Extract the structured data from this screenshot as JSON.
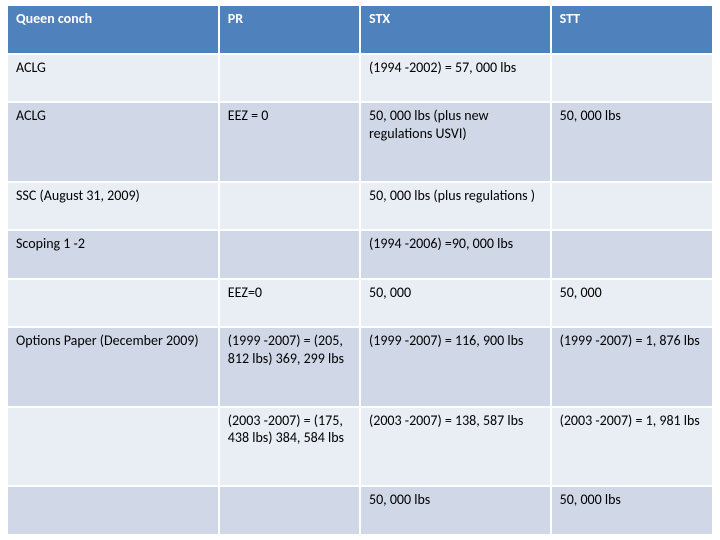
{
  "table": {
    "colors": {
      "header_bg": "#4f81bd",
      "header_fg": "#ffffff",
      "row_odd_bg": "#d0d8e8",
      "row_even_bg": "#e9edf4",
      "border": "#ffffff",
      "text": "#000000"
    },
    "font": {
      "family": "Calibri",
      "header_size_pt": 11,
      "cell_size_pt": 11,
      "header_weight": "bold"
    },
    "col_widths_pct": [
      30,
      20,
      27,
      23
    ],
    "header": [
      "Queen conch",
      "PR",
      "STX",
      "STT"
    ],
    "rows": [
      {
        "cells": [
          "ACLG",
          "",
          "(1994 -2002) = 57, 000 lbs",
          ""
        ]
      },
      {
        "cells": [
          "ACLG",
          "EEZ = 0",
          "50, 000 lbs (plus new regulations USVI)",
          "50, 000 lbs"
        ]
      },
      {
        "cells": [
          "SSC (August 31, 2009)",
          "",
          "50, 000 lbs (plus regulations )",
          ""
        ]
      },
      {
        "cells": [
          "Scoping  1 -2",
          "",
          "(1994 -2006) =90, 000 lbs",
          ""
        ]
      },
      {
        "cells": [
          "",
          "EEZ=0",
          "50, 000",
          "50, 000"
        ]
      },
      {
        "cells": [
          "Options Paper (December 2009)",
          "(1999 -2007) = (205, 812 lbs) 369, 299 lbs",
          "(1999 -2007) = 116, 900 lbs",
          "(1999 -2007) = 1, 876 lbs"
        ]
      },
      {
        "cells": [
          "",
          "(2003 -2007) = (175, 438 lbs) 384, 584 lbs",
          "(2003 -2007) = 138, 587 lbs",
          "(2003 -2007) = 1, 981 lbs"
        ]
      },
      {
        "cells": [
          "",
          "",
          "50, 000 lbs",
          "50, 000 lbs"
        ]
      }
    ]
  }
}
